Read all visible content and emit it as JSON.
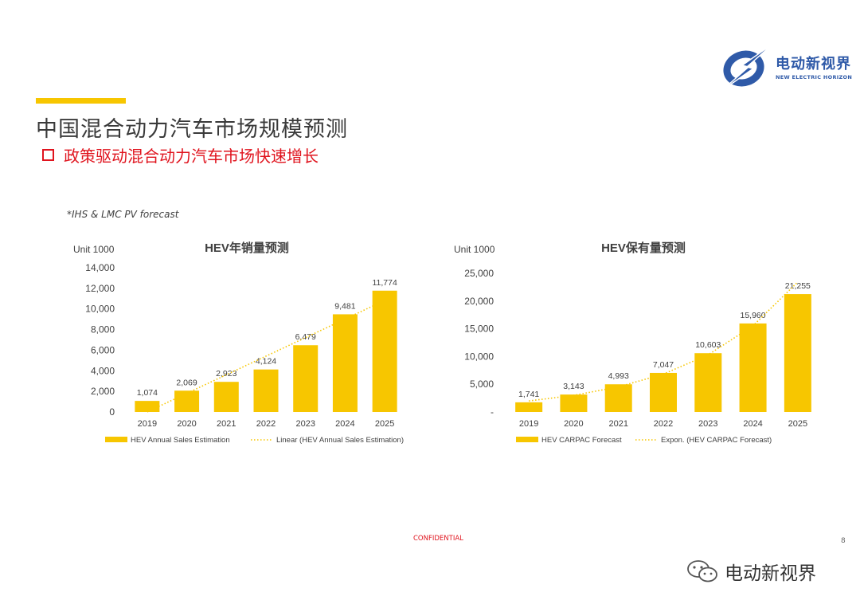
{
  "page": {
    "title": "中国混合动力汽车市场规模预测",
    "subtitle": "政策驱动混合动力汽车市场快速增长",
    "source_note": "*IHS & LMC PV forecast",
    "confidential": "CONFIDENTIAL",
    "page_number": "8"
  },
  "logo": {
    "cn": "电动新视界",
    "en": "NEW ELECTRIC HORIZON"
  },
  "watermark": {
    "text": "电动新视界"
  },
  "colors": {
    "bar": "#f7c600",
    "accent": "#f7c600",
    "red": "#e0141e",
    "logo_blue": "#2f5aa8"
  },
  "chart_data": [
    {
      "type": "bar",
      "title": "HEV年销量预测",
      "unit_label": "Unit 1000",
      "categories": [
        "2019",
        "2020",
        "2021",
        "2022",
        "2023",
        "2024",
        "2025"
      ],
      "series": [
        {
          "name": "HEV Annual Sales Estimation",
          "values": [
            1074,
            2069,
            2923,
            4124,
            6479,
            9481,
            11774
          ]
        }
      ],
      "data_labels": [
        "1,074",
        "2,069",
        "2,923",
        "4,124",
        "6,479",
        "9,481",
        "11,774"
      ],
      "trendline": {
        "type": "linear",
        "name": "Linear (HEV Annual Sales Estimation)",
        "style": "dotted"
      },
      "ylim": [
        0,
        14000
      ],
      "yticks": [
        0,
        2000,
        4000,
        6000,
        8000,
        10000,
        12000,
        14000
      ],
      "ytick_labels": [
        "0",
        "2,000",
        "4,000",
        "6,000",
        "8,000",
        "10,000",
        "12,000",
        "14,000"
      ],
      "grid": false,
      "legend_position": "bottom"
    },
    {
      "type": "bar",
      "title": "HEV保有量预测",
      "unit_label": "Unit 1000",
      "categories": [
        "2019",
        "2020",
        "2021",
        "2022",
        "2023",
        "2024",
        "2025"
      ],
      "series": [
        {
          "name": "HEV CARPAC Forecast",
          "values": [
            1741,
            3143,
            4993,
            7047,
            10603,
            15960,
            21255
          ]
        }
      ],
      "data_labels": [
        "1,741",
        "3,143",
        "4,993",
        "7,047",
        "10,603",
        "15,960",
        "21,255"
      ],
      "trendline": {
        "type": "exponential",
        "name": "Expon. (HEV CARPAC Forecast)",
        "style": "dotted"
      },
      "ylim": [
        0,
        25000
      ],
      "yticks": [
        0,
        5000,
        10000,
        15000,
        20000,
        25000
      ],
      "ytick_labels": [
        "-",
        "5,000",
        "10,000",
        "15,000",
        "20,000",
        "25,000"
      ],
      "grid": false,
      "legend_position": "bottom"
    }
  ]
}
